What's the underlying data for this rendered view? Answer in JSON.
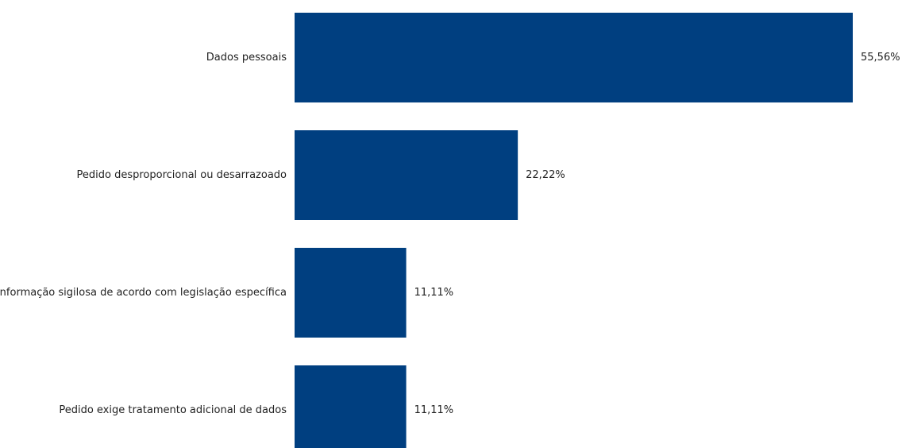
{
  "chart_data": {
    "type": "bar",
    "orientation": "horizontal",
    "categories": [
      "Dados pessoais",
      "Pedido desproporcional ou desarrazoado",
      "Informação sigilosa de acordo com legislação específica",
      "Pedido exige tratamento adicional de dados"
    ],
    "values": [
      55.56,
      22.22,
      11.11,
      11.11
    ],
    "data_labels": [
      "55,56%",
      "22,22%",
      "11,11%",
      "11,11%"
    ],
    "unit": "%",
    "xlim": [
      0,
      55.56
    ],
    "grid": false,
    "legend": "none",
    "title": "",
    "xlabel": "",
    "ylabel": "",
    "bar_color": "#003f80"
  }
}
